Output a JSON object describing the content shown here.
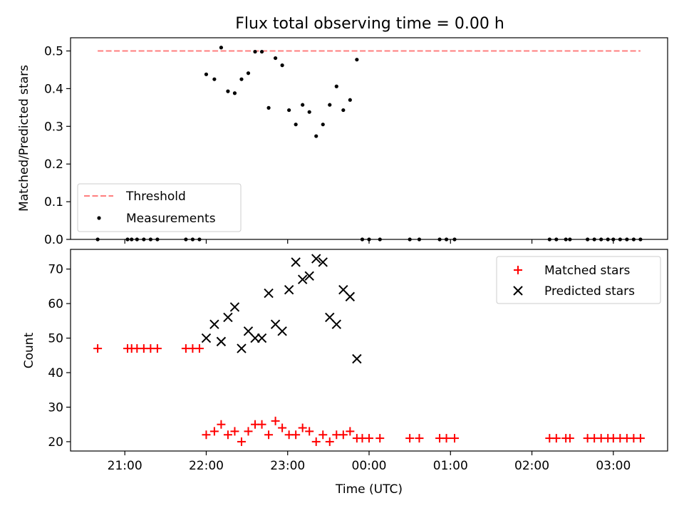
{
  "chart_data": [
    {
      "type": "scatter",
      "title": "Flux total observing time = 0.00 h",
      "xlabel": "",
      "ylabel": "Matched/Predicted stars",
      "ylim": [
        0,
        0.535
      ],
      "yticks": [
        0.0,
        0.1,
        0.2,
        0.3,
        0.4,
        0.5
      ],
      "ytick_labels": [
        "0.0",
        "0.1",
        "0.2",
        "0.3",
        "0.4",
        "0.5"
      ],
      "legend_position": "bottom-left",
      "threshold": {
        "name": "Threshold",
        "value": 0.5,
        "x_start": "20:40",
        "x_end": "03:20",
        "color": "#ff7f7f"
      },
      "series": [
        {
          "name": "Measurements",
          "color": "#000000",
          "marker": "dot",
          "points": [
            [
              "20:40",
              0.0
            ],
            [
              "21:02",
              0.0
            ],
            [
              "21:05",
              0.0
            ],
            [
              "21:09",
              0.0
            ],
            [
              "21:14",
              0.0
            ],
            [
              "21:19",
              0.0
            ],
            [
              "21:24",
              0.0
            ],
            [
              "21:45",
              0.0
            ],
            [
              "21:50",
              0.0
            ],
            [
              "21:55",
              0.0
            ],
            [
              "22:00",
              0.438
            ],
            [
              "22:06",
              0.425
            ],
            [
              "22:11",
              0.509
            ],
            [
              "22:16",
              0.393
            ],
            [
              "22:21",
              0.388
            ],
            [
              "22:26",
              0.425
            ],
            [
              "22:31",
              0.441
            ],
            [
              "22:36",
              0.498
            ],
            [
              "22:41",
              0.498
            ],
            [
              "22:46",
              0.349
            ],
            [
              "22:51",
              0.481
            ],
            [
              "22:56",
              0.462
            ],
            [
              "23:01",
              0.343
            ],
            [
              "23:06",
              0.305
            ],
            [
              "23:11",
              0.357
            ],
            [
              "23:16",
              0.338
            ],
            [
              "23:21",
              0.274
            ],
            [
              "23:26",
              0.305
            ],
            [
              "23:31",
              0.357
            ],
            [
              "23:36",
              0.406
            ],
            [
              "23:41",
              0.343
            ],
            [
              "23:46",
              0.37
            ],
            [
              "23:51",
              0.477
            ],
            [
              "23:55",
              0.0
            ],
            [
              "00:00",
              0.0
            ],
            [
              "00:08",
              0.0
            ],
            [
              "00:30",
              0.0
            ],
            [
              "00:37",
              0.0
            ],
            [
              "00:52",
              0.0
            ],
            [
              "00:57",
              0.0
            ],
            [
              "01:03",
              0.0
            ],
            [
              "02:13",
              0.0
            ],
            [
              "02:18",
              0.0
            ],
            [
              "02:25",
              0.0
            ],
            [
              "02:28",
              0.0
            ],
            [
              "02:41",
              0.0
            ],
            [
              "02:46",
              0.0
            ],
            [
              "02:51",
              0.0
            ],
            [
              "02:56",
              0.0
            ],
            [
              "03:00",
              0.0
            ],
            [
              "03:05",
              0.0
            ],
            [
              "03:10",
              0.0
            ],
            [
              "03:15",
              0.0
            ],
            [
              "03:20",
              0.0
            ]
          ]
        }
      ]
    },
    {
      "type": "scatter",
      "title": "",
      "xlabel": "Time (UTC)",
      "ylabel": "Count",
      "ylim": [
        17.3,
        75.7
      ],
      "yticks": [
        20,
        30,
        40,
        50,
        60,
        70
      ],
      "ytick_labels": [
        "20",
        "30",
        "40",
        "50",
        "60",
        "70"
      ],
      "xticks": [
        "21:00",
        "22:00",
        "23:00",
        "00:00",
        "01:00",
        "02:00",
        "03:00"
      ],
      "xlim": [
        "20:20",
        "03:40"
      ],
      "legend_position": "top-right",
      "series": [
        {
          "name": "Matched stars",
          "color": "#ff0000",
          "marker": "plus",
          "points": [
            [
              "20:40",
              47
            ],
            [
              "21:02",
              47
            ],
            [
              "21:05",
              47
            ],
            [
              "21:09",
              47
            ],
            [
              "21:14",
              47
            ],
            [
              "21:19",
              47
            ],
            [
              "21:24",
              47
            ],
            [
              "21:45",
              47
            ],
            [
              "21:50",
              47
            ],
            [
              "21:55",
              47
            ],
            [
              "22:00",
              22
            ],
            [
              "22:06",
              23
            ],
            [
              "22:11",
              25
            ],
            [
              "22:16",
              22
            ],
            [
              "22:21",
              23
            ],
            [
              "22:26",
              20
            ],
            [
              "22:31",
              23
            ],
            [
              "22:36",
              25
            ],
            [
              "22:41",
              25
            ],
            [
              "22:46",
              22
            ],
            [
              "22:51",
              26
            ],
            [
              "22:56",
              24
            ],
            [
              "23:01",
              22
            ],
            [
              "23:06",
              22
            ],
            [
              "23:11",
              24
            ],
            [
              "23:16",
              23
            ],
            [
              "23:21",
              20
            ],
            [
              "23:26",
              22
            ],
            [
              "23:31",
              20
            ],
            [
              "23:36",
              22
            ],
            [
              "23:41",
              22
            ],
            [
              "23:46",
              23
            ],
            [
              "23:51",
              21
            ],
            [
              "23:55",
              21
            ],
            [
              "00:00",
              21
            ],
            [
              "00:08",
              21
            ],
            [
              "00:30",
              21
            ],
            [
              "00:37",
              21
            ],
            [
              "00:52",
              21
            ],
            [
              "00:57",
              21
            ],
            [
              "01:03",
              21
            ],
            [
              "02:13",
              21
            ],
            [
              "02:18",
              21
            ],
            [
              "02:25",
              21
            ],
            [
              "02:28",
              21
            ],
            [
              "02:41",
              21
            ],
            [
              "02:46",
              21
            ],
            [
              "02:51",
              21
            ],
            [
              "02:56",
              21
            ],
            [
              "03:00",
              21
            ],
            [
              "03:05",
              21
            ],
            [
              "03:10",
              21
            ],
            [
              "03:15",
              21
            ],
            [
              "03:20",
              21
            ]
          ]
        },
        {
          "name": "Predicted stars",
          "color": "#000000",
          "marker": "x",
          "points": [
            [
              "22:00",
              50
            ],
            [
              "22:06",
              54
            ],
            [
              "22:11",
              49
            ],
            [
              "22:16",
              56
            ],
            [
              "22:21",
              59
            ],
            [
              "22:26",
              47
            ],
            [
              "22:31",
              52
            ],
            [
              "22:36",
              50
            ],
            [
              "22:41",
              50
            ],
            [
              "22:46",
              63
            ],
            [
              "22:51",
              54
            ],
            [
              "22:56",
              52
            ],
            [
              "23:01",
              64
            ],
            [
              "23:06",
              72
            ],
            [
              "23:11",
              67
            ],
            [
              "23:16",
              68
            ],
            [
              "23:21",
              73
            ],
            [
              "23:26",
              72
            ],
            [
              "23:31",
              56
            ],
            [
              "23:36",
              54
            ],
            [
              "23:41",
              64
            ],
            [
              "23:46",
              62
            ],
            [
              "23:51",
              44
            ]
          ]
        }
      ]
    }
  ]
}
